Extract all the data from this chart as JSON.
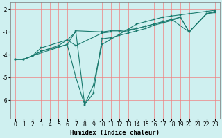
{
  "xlabel": "Humidex (Indice chaleur)",
  "xlim": [
    -0.5,
    23.5
  ],
  "ylim": [
    -6.8,
    -1.7
  ],
  "xticks": [
    0,
    1,
    2,
    3,
    4,
    5,
    6,
    7,
    8,
    9,
    10,
    11,
    12,
    13,
    14,
    15,
    16,
    17,
    18,
    19,
    20,
    21,
    22,
    23
  ],
  "yticks": [
    -6,
    -5,
    -4,
    -3,
    -2
  ],
  "bg_color": "#cff0f0",
  "grid_color": "#f08080",
  "line_color": "#1a7a6e",
  "lines": [
    {
      "x": [
        0,
        1,
        2,
        3,
        6,
        7,
        10,
        11,
        12,
        13,
        14,
        15,
        16,
        17,
        18,
        20,
        22,
        23
      ],
      "y": [
        -4.2,
        -4.2,
        -4.05,
        -3.85,
        -3.55,
        -2.95,
        -3.0,
        -2.95,
        -2.95,
        -2.9,
        -2.85,
        -2.75,
        -2.65,
        -2.55,
        -2.45,
        -3.0,
        -2.2,
        -2.15
      ]
    },
    {
      "x": [
        0,
        1,
        2,
        3,
        6,
        7,
        10,
        11,
        12,
        13,
        14,
        15,
        16,
        17,
        18,
        19,
        20,
        22,
        23
      ],
      "y": [
        -4.2,
        -4.2,
        -4.05,
        -3.7,
        -3.35,
        -3.6,
        -3.05,
        -3.0,
        -3.0,
        -2.95,
        -2.85,
        -2.75,
        -2.65,
        -2.55,
        -2.45,
        -2.35,
        -3.0,
        -2.2,
        -2.1
      ]
    },
    {
      "x": [
        0,
        1,
        2,
        3,
        5,
        6,
        7,
        8,
        9,
        10,
        11,
        12,
        13,
        14,
        15,
        16,
        17,
        18,
        19,
        20,
        22,
        23
      ],
      "y": [
        -4.2,
        -4.2,
        -4.05,
        -3.85,
        -3.6,
        -3.35,
        -3.0,
        -6.2,
        -5.7,
        -3.3,
        -3.25,
        -3.15,
        -3.05,
        -2.95,
        -2.85,
        -2.7,
        -2.6,
        -2.5,
        -2.35,
        -3.0,
        -2.2,
        -2.1
      ]
    },
    {
      "x": [
        0,
        1,
        2,
        6,
        7,
        8,
        9,
        10,
        14,
        15,
        16,
        17,
        18,
        19,
        20,
        22,
        23
      ],
      "y": [
        -4.2,
        -4.2,
        -4.05,
        -3.55,
        -5.0,
        -6.2,
        -5.35,
        -3.55,
        -2.65,
        -2.55,
        -2.45,
        -2.35,
        -2.3,
        -2.25,
        -2.2,
        -2.1,
        -2.05
      ]
    }
  ]
}
